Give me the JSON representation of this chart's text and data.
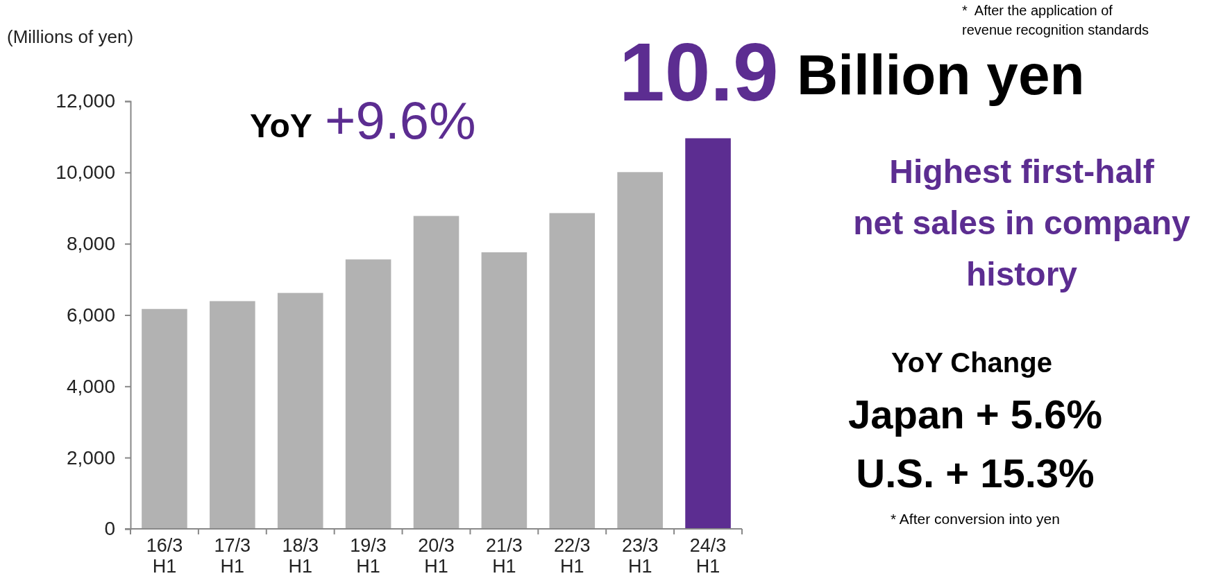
{
  "chart_data": {
    "type": "bar",
    "ylabel": "(Millions of yen)",
    "categories": [
      "16/3 H1",
      "17/3 H1",
      "18/3 H1",
      "19/3 H1",
      "20/3 H1",
      "21/3 H1",
      "22/3 H1",
      "23/3 H1",
      "24/3 H1"
    ],
    "values": [
      6170,
      6390,
      6620,
      7560,
      8780,
      7760,
      8860,
      10010,
      10960
    ],
    "colors": [
      "#b2b2b2",
      "#b2b2b2",
      "#b2b2b2",
      "#b2b2b2",
      "#b2b2b2",
      "#b2b2b2",
      "#b2b2b2",
      "#b2b2b2",
      "#5c2d91"
    ],
    "ylim": [
      0,
      12000
    ],
    "yticks": [
      {
        "value": 0,
        "label": "0"
      },
      {
        "value": 2000,
        "label": "2,000"
      },
      {
        "value": 4000,
        "label": "4,000"
      },
      {
        "value": 6000,
        "label": "6,000"
      },
      {
        "value": 8000,
        "label": "8,000"
      },
      {
        "value": 10000,
        "label": "10,000"
      },
      {
        "value": 12000,
        "label": "12,000"
      }
    ],
    "grid": false,
    "annotations": [
      "YoY",
      "+9.6%",
      "10.9",
      "Billion yen",
      "Highest first-half\nnet sales in company\nhistory",
      "YoY Change",
      "Japan + 5.6%",
      "U.S. + 15.3%",
      "* After conversion into yen",
      "*  After the application of\nrevenue recognition standards"
    ]
  }
}
